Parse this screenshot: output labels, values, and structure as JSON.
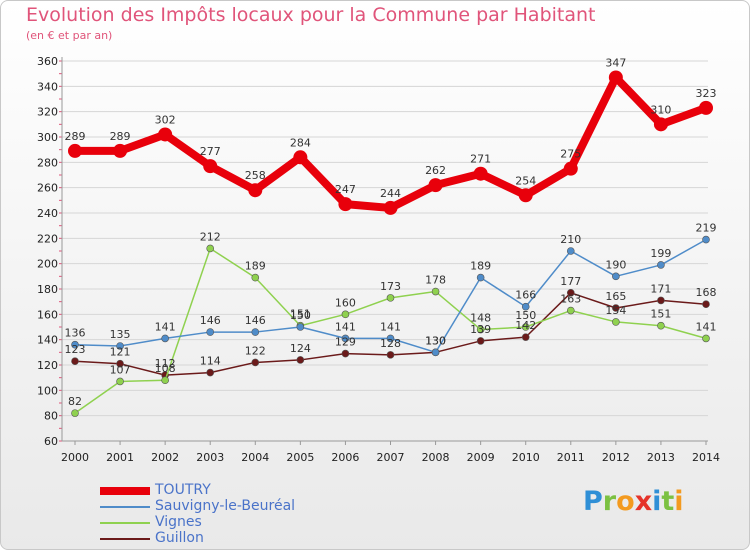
{
  "header": {
    "title": "Evolution des Impôts locaux pour la Commune par Habitant",
    "subtitle": "(en € et par an)"
  },
  "logo": {
    "text": "Proxiti",
    "letters": [
      {
        "ch": "P",
        "color": "#2f8fd6"
      },
      {
        "ch": "r",
        "color": "#7cc142"
      },
      {
        "ch": "o",
        "color": "#f39a1f"
      },
      {
        "ch": "x",
        "color": "#e5332a"
      },
      {
        "ch": "i",
        "color": "#2f8fd6"
      },
      {
        "ch": "t",
        "color": "#7cc142"
      },
      {
        "ch": "i",
        "color": "#f39a1f"
      }
    ]
  },
  "chart_data": {
    "type": "line",
    "title": "Evolution des Impôts locaux pour la Commune par Habitant",
    "subtitle": "(en € et par an)",
    "x": [
      "2000",
      "2001",
      "2002",
      "2003",
      "2004",
      "2005",
      "2006",
      "2007",
      "2008",
      "2009",
      "2010",
      "2011",
      "2012",
      "2013",
      "2014"
    ],
    "ylim": [
      60,
      360
    ],
    "yticks": [
      60,
      80,
      100,
      120,
      140,
      160,
      180,
      200,
      220,
      240,
      260,
      280,
      300,
      320,
      340,
      360
    ],
    "grid": true,
    "legend_position": "bottom-left",
    "series": [
      {
        "name": "TOUTRY",
        "color": "#e8000b",
        "values": [
          289,
          289,
          302,
          277,
          258,
          284,
          247,
          244,
          262,
          271,
          254,
          275,
          347,
          310,
          323
        ]
      },
      {
        "name": "Sauvigny-le-Beuréal",
        "color": "#4f8cc9",
        "values": [
          136,
          135,
          141,
          146,
          146,
          150,
          141,
          141,
          130,
          189,
          166,
          210,
          190,
          199,
          219
        ]
      },
      {
        "name": "Vignes",
        "color": "#8fd14f",
        "values": [
          82,
          107,
          108,
          212,
          189,
          151,
          160,
          173,
          178,
          148,
          150,
          163,
          154,
          151,
          141
        ]
      },
      {
        "name": "Guillon",
        "color": "#6b1a1a",
        "values": [
          123,
          121,
          112,
          114,
          122,
          124,
          129,
          128,
          130,
          139,
          142,
          177,
          165,
          171,
          168
        ]
      }
    ]
  }
}
